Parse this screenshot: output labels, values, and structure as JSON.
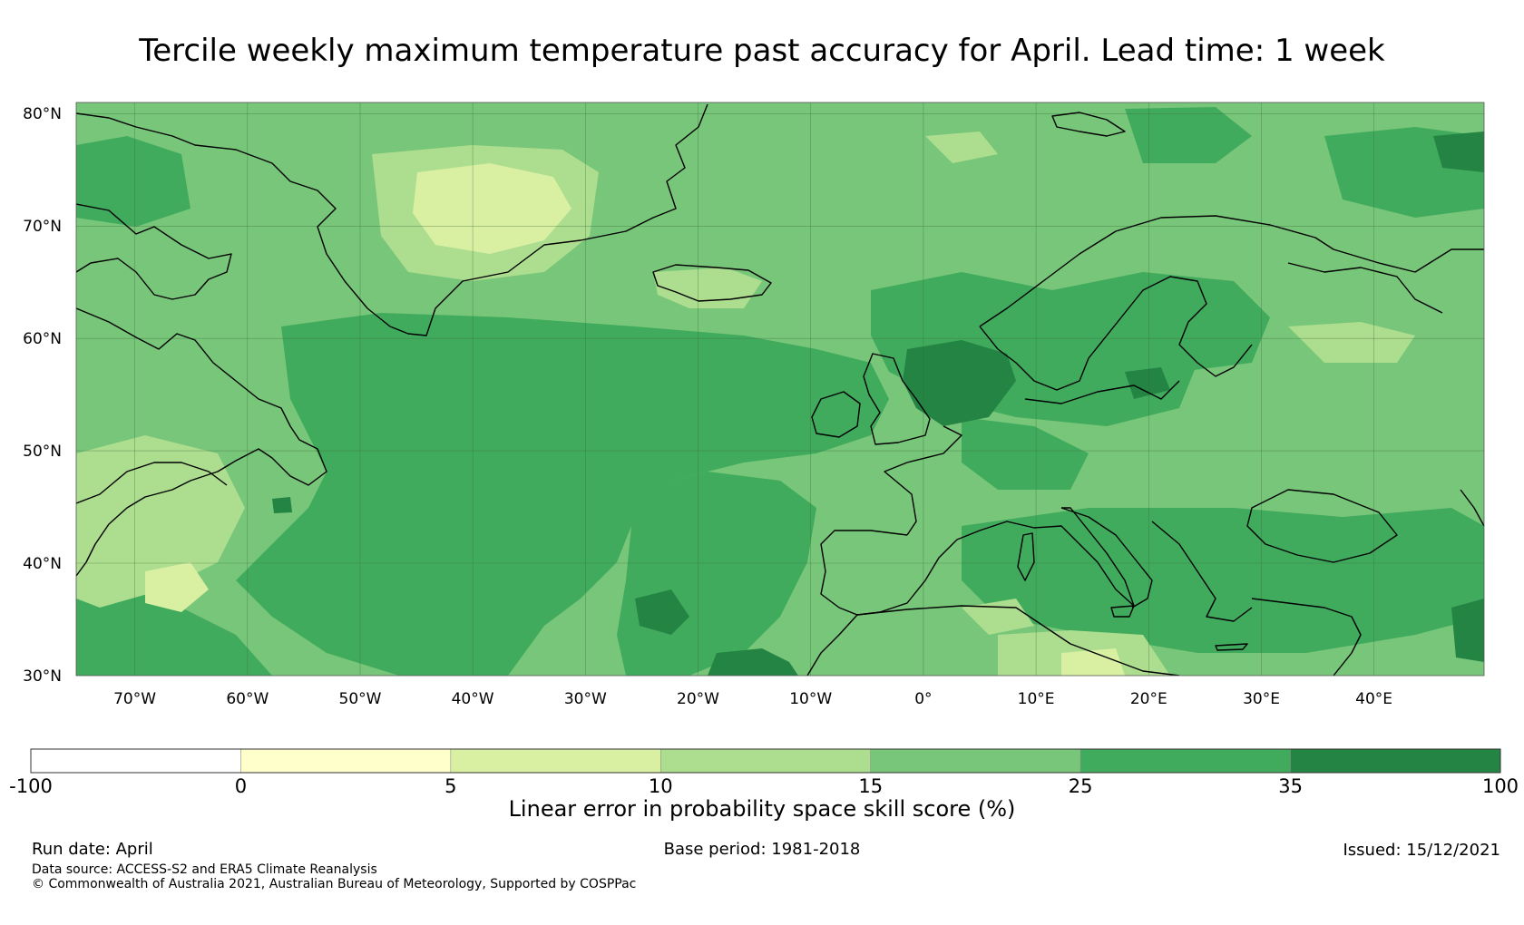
{
  "title": "Tercile weekly maximum temperature past accuracy for April. Lead time: 1 week",
  "map": {
    "lat_labels": [
      "80°N",
      "70°N",
      "60°N",
      "50°N",
      "40°N",
      "30°N"
    ],
    "lon_labels": [
      "70°W",
      "60°W",
      "50°W",
      "40°W",
      "30°W",
      "20°W",
      "10°W",
      "0°",
      "10°E",
      "20°E",
      "30°E",
      "40°E"
    ],
    "extent": {
      "lon_min": -75,
      "lon_max": 50,
      "lat_min": 30,
      "lat_max": 81
    },
    "grid": true
  },
  "colorbar": {
    "label": "Linear error in probability space skill score (%)",
    "boundaries": [
      "-100",
      "0",
      "5",
      "10",
      "15",
      "25",
      "35",
      "100"
    ],
    "colors": [
      "#ffffff",
      "#ffffcc",
      "#d9f0a3",
      "#addd8e",
      "#78c679",
      "#41ab5d",
      "#238443"
    ]
  },
  "footer": {
    "run_date": "Run date: April",
    "base_period": "Base period: 1981-2018",
    "issued": "Issued: 15/12/2021",
    "data_source": "Data source: ACCESS-S2 and ERA5 Climate Reanalysis",
    "copyright": "© Commonwealth of Australia 2021, Australian Bureau of Meteorology, Supported by COSPPac"
  }
}
